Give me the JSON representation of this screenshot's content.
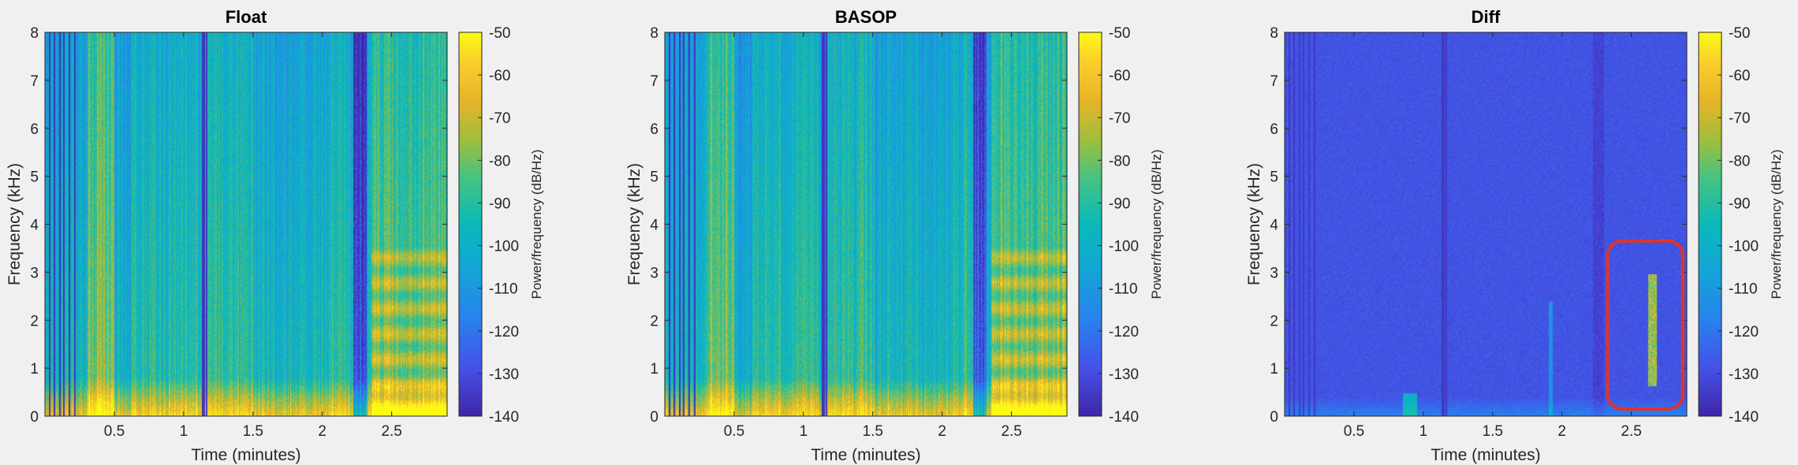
{
  "chart_data": [
    {
      "type": "heatmap",
      "title": "Float",
      "xlabel": "Time (minutes)",
      "ylabel": "Frequency (kHz)",
      "colorbar_label": "Power/frequency (dB/Hz)",
      "xlim": [
        0,
        2.9
      ],
      "ylim": [
        0,
        8
      ],
      "xticks": [
        "0.5",
        "1",
        "1.5",
        "2",
        "2.5"
      ],
      "xtick_values": [
        0.5,
        1,
        1.5,
        2,
        2.5
      ],
      "yticks": [
        "0",
        "1",
        "2",
        "3",
        "4",
        "5",
        "6",
        "7",
        "8"
      ],
      "ytick_values": [
        0,
        1,
        2,
        3,
        4,
        5,
        6,
        7,
        8
      ],
      "clim": [
        -140,
        -50
      ],
      "cticks": [
        "-50",
        "-60",
        "-70",
        "-80",
        "-90",
        "-100",
        "-110",
        "-120",
        "-130",
        "-140"
      ],
      "ctick_values": [
        -50,
        -60,
        -70,
        -80,
        -90,
        -100,
        -110,
        -120,
        -130,
        -140
      ],
      "colormap": "parula"
    },
    {
      "type": "heatmap",
      "title": "BASOP",
      "xlabel": "Time (minutes)",
      "ylabel": "Frequency (kHz)",
      "colorbar_label": "Power/frequency (dB/Hz)",
      "xlim": [
        0,
        2.9
      ],
      "ylim": [
        0,
        8
      ],
      "xticks": [
        "0.5",
        "1",
        "1.5",
        "2",
        "2.5"
      ],
      "xtick_values": [
        0.5,
        1,
        1.5,
        2,
        2.5
      ],
      "yticks": [
        "0",
        "1",
        "2",
        "3",
        "4",
        "5",
        "6",
        "7",
        "8"
      ],
      "ytick_values": [
        0,
        1,
        2,
        3,
        4,
        5,
        6,
        7,
        8
      ],
      "clim": [
        -140,
        -50
      ],
      "cticks": [
        "-50",
        "-60",
        "-70",
        "-80",
        "-90",
        "-100",
        "-110",
        "-120",
        "-130",
        "-140"
      ],
      "ctick_values": [
        -50,
        -60,
        -70,
        -80,
        -90,
        -100,
        -110,
        -120,
        -130,
        -140
      ],
      "colormap": "parula"
    },
    {
      "type": "heatmap",
      "title": "Diff",
      "xlabel": "Time (minutes)",
      "ylabel": "Frequency (kHz)",
      "colorbar_label": "Power/frequency (dB/Hz)",
      "xlim": [
        0,
        2.9
      ],
      "ylim": [
        0,
        8
      ],
      "xticks": [
        "0.5",
        "1",
        "1.5",
        "2",
        "2.5"
      ],
      "xtick_values": [
        0.5,
        1,
        1.5,
        2,
        2.5
      ],
      "yticks": [
        "0",
        "1",
        "2",
        "3",
        "4",
        "5",
        "6",
        "7",
        "8"
      ],
      "ytick_values": [
        0,
        1,
        2,
        3,
        4,
        5,
        6,
        7,
        8
      ],
      "clim": [
        -140,
        -50
      ],
      "cticks": [
        "-50",
        "-60",
        "-70",
        "-80",
        "-90",
        "-100",
        "-110",
        "-120",
        "-130",
        "-140"
      ],
      "ctick_values": [
        -50,
        -60,
        -70,
        -80,
        -90,
        -100,
        -110,
        -120,
        -130,
        -140
      ],
      "colormap": "parula",
      "highlight": {
        "color": "#e0342a",
        "x_range": [
          2.33,
          2.87
        ],
        "y_range": [
          0.15,
          3.65
        ]
      }
    }
  ]
}
